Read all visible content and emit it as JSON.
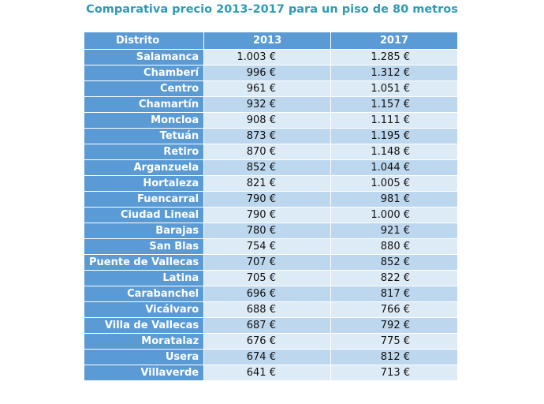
{
  "chart_data": {
    "type": "table",
    "title": "Comparativa precio 2013-2017 para un piso de 80 metros",
    "columns": [
      "Distrito",
      "2013",
      "2017"
    ],
    "rows": [
      {
        "distrito": "Salamanca",
        "v2013": "1.003 €",
        "v2017": "1.285 €"
      },
      {
        "distrito": "Chamberí",
        "v2013": "996 €",
        "v2017": "1.312 €"
      },
      {
        "distrito": "Centro",
        "v2013": "961 €",
        "v2017": "1.051 €"
      },
      {
        "distrito": "Chamartín",
        "v2013": "932 €",
        "v2017": "1.157 €"
      },
      {
        "distrito": "Moncloa",
        "v2013": "908 €",
        "v2017": "1.111 €"
      },
      {
        "distrito": "Tetuán",
        "v2013": "873 €",
        "v2017": "1.195 €"
      },
      {
        "distrito": "Retiro",
        "v2013": "870 €",
        "v2017": "1.148 €"
      },
      {
        "distrito": "Arganzuela",
        "v2013": "852 €",
        "v2017": "1.044 €"
      },
      {
        "distrito": "Hortaleza",
        "v2013": "821 €",
        "v2017": "1.005 €"
      },
      {
        "distrito": "Fuencarral",
        "v2013": "790 €",
        "v2017": "981 €"
      },
      {
        "distrito": "Ciudad Lineal",
        "v2013": "790 €",
        "v2017": "1.000 €"
      },
      {
        "distrito": "Barajas",
        "v2013": "780 €",
        "v2017": "921 €"
      },
      {
        "distrito": "San Blas",
        "v2013": "754 €",
        "v2017": "880 €"
      },
      {
        "distrito": "Puente de Vallecas",
        "v2013": "707 €",
        "v2017": "852 €"
      },
      {
        "distrito": "Latina",
        "v2013": "705 €",
        "v2017": "822 €"
      },
      {
        "distrito": "Carabanchel",
        "v2013": "696 €",
        "v2017": "817 €"
      },
      {
        "distrito": "Vicálvaro",
        "v2013": "688 €",
        "v2017": "766 €"
      },
      {
        "distrito": "Villa de Vallecas",
        "v2013": "687 €",
        "v2017": "792 €"
      },
      {
        "distrito": "Moratalaz",
        "v2013": "676 €",
        "v2017": "775 €"
      },
      {
        "distrito": "Usera",
        "v2013": "674 €",
        "v2017": "812 €"
      },
      {
        "distrito": "Villaverde",
        "v2013": "641 €",
        "v2017": "713 €"
      }
    ],
    "colors": {
      "title": "#2e9ab5",
      "header_bg": "#5b9bd5",
      "row_light": "#ddebf7",
      "row_dark": "#bdd7ee"
    }
  }
}
